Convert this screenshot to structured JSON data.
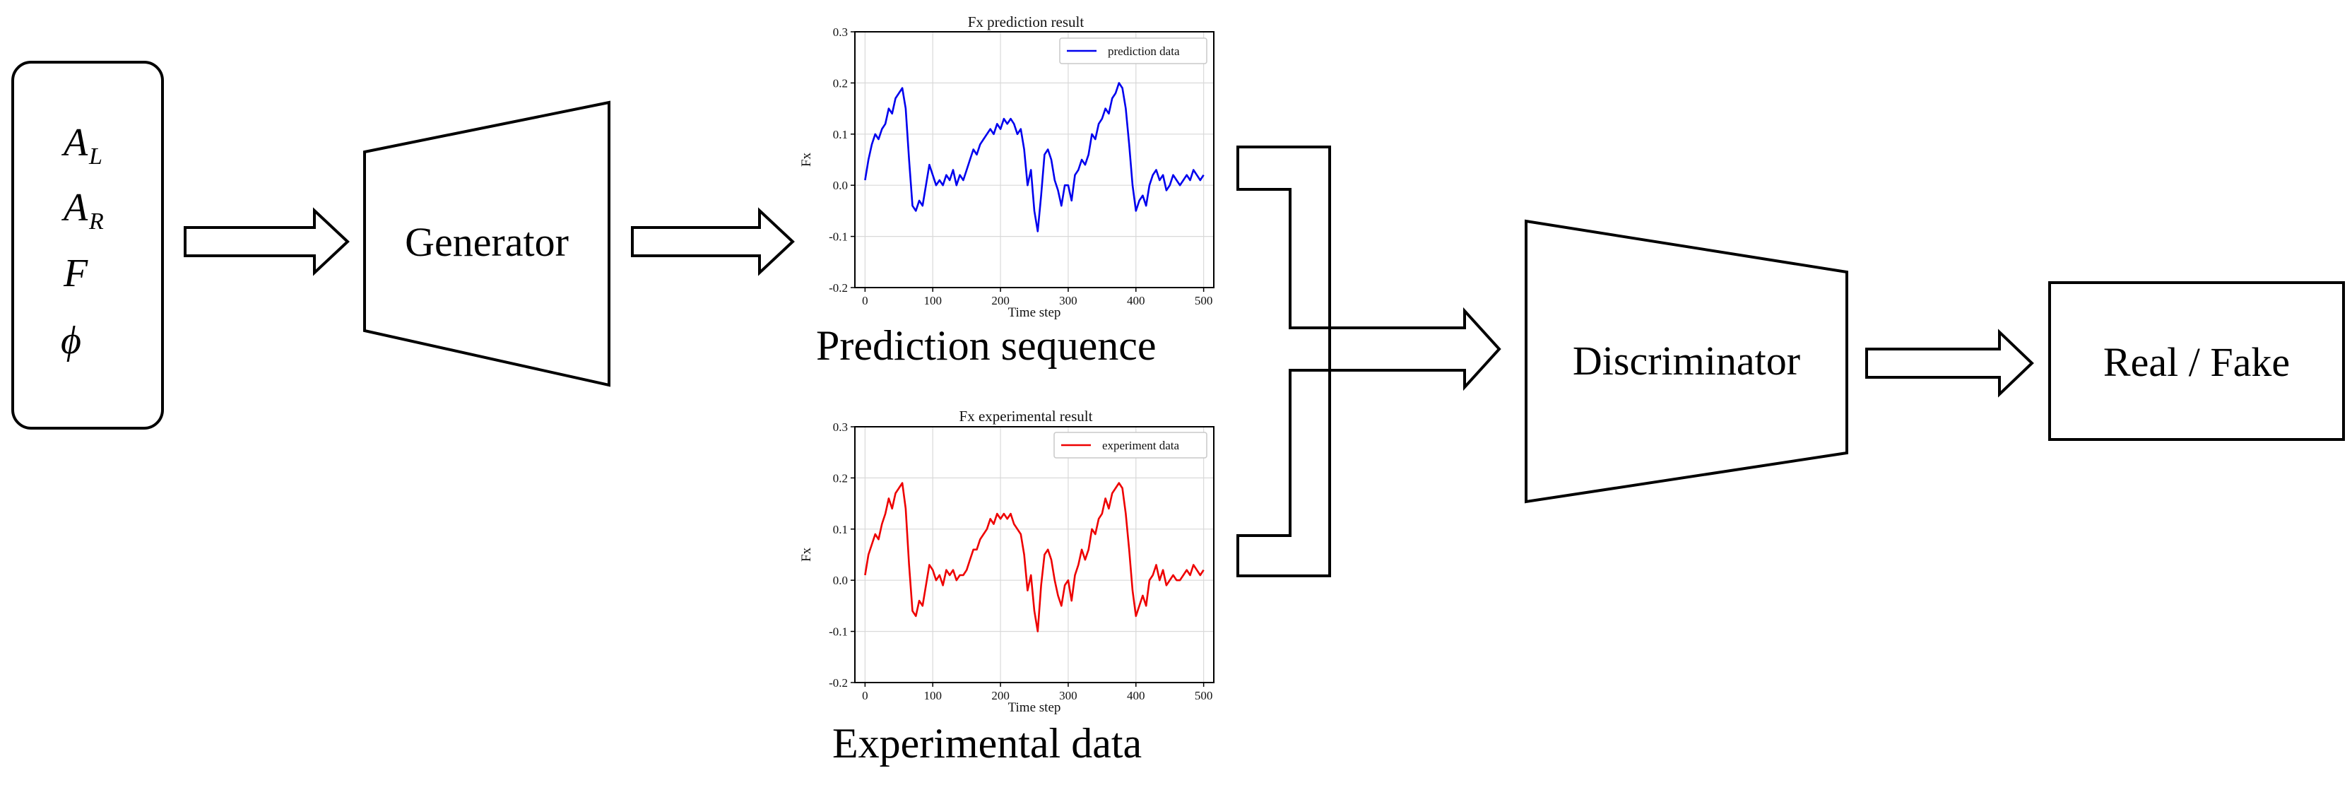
{
  "inputs": {
    "vars": [
      {
        "base": "A",
        "sub": "L"
      },
      {
        "base": "A",
        "sub": "R"
      },
      {
        "base": "F",
        "sub": ""
      },
      {
        "base": "ϕ",
        "sub": ""
      }
    ]
  },
  "generator": {
    "label": "Generator"
  },
  "discriminator": {
    "label": "Discriminator"
  },
  "output": {
    "label": "Real / Fake"
  },
  "captions": {
    "prediction": "Prediction sequence",
    "experimental": "Experimental data"
  },
  "colors": {
    "prediction": "#0000ee",
    "experimental": "#ee0000"
  },
  "chart_data": [
    {
      "type": "line",
      "title": "Fx prediction result",
      "xlabel": "Time step",
      "ylabel": "Fx",
      "xlim": [
        -15,
        515
      ],
      "ylim": [
        -0.2,
        0.3
      ],
      "xticks": [
        "0",
        "100",
        "200",
        "300",
        "400",
        "500"
      ],
      "yticks": [
        "-0.2",
        "-0.1",
        "0.0",
        "0.1",
        "0.2",
        "0.3"
      ],
      "legend": "top-right",
      "grid": true,
      "series": [
        {
          "name": "prediction data",
          "x": [
            0,
            5,
            10,
            15,
            20,
            25,
            30,
            35,
            40,
            45,
            50,
            55,
            60,
            65,
            70,
            75,
            80,
            85,
            90,
            95,
            100,
            105,
            110,
            115,
            120,
            125,
            130,
            135,
            140,
            145,
            150,
            155,
            160,
            165,
            170,
            175,
            180,
            185,
            190,
            195,
            200,
            205,
            210,
            215,
            220,
            225,
            230,
            235,
            240,
            245,
            250,
            255,
            260,
            265,
            270,
            275,
            280,
            285,
            290,
            295,
            300,
            305,
            310,
            315,
            320,
            325,
            330,
            335,
            340,
            345,
            350,
            355,
            360,
            365,
            370,
            375,
            380,
            385,
            390,
            395,
            400,
            405,
            410,
            415,
            420,
            425,
            430,
            435,
            440,
            445,
            450,
            455,
            460,
            465,
            470,
            475,
            480,
            485,
            490,
            495,
            500
          ],
          "values": [
            0.01,
            0.05,
            0.08,
            0.1,
            0.09,
            0.11,
            0.12,
            0.15,
            0.14,
            0.17,
            0.18,
            0.19,
            0.15,
            0.05,
            -0.04,
            -0.05,
            -0.03,
            -0.04,
            0.0,
            0.04,
            0.02,
            0.0,
            0.01,
            0.0,
            0.02,
            0.01,
            0.03,
            0.0,
            0.02,
            0.01,
            0.03,
            0.05,
            0.07,
            0.06,
            0.08,
            0.09,
            0.1,
            0.11,
            0.1,
            0.12,
            0.11,
            0.13,
            0.12,
            0.13,
            0.12,
            0.1,
            0.11,
            0.07,
            0.0,
            0.03,
            -0.05,
            -0.09,
            -0.02,
            0.06,
            0.07,
            0.05,
            0.01,
            -0.01,
            -0.04,
            0.0,
            0.0,
            -0.03,
            0.02,
            0.03,
            0.05,
            0.04,
            0.06,
            0.1,
            0.09,
            0.12,
            0.13,
            0.15,
            0.14,
            0.17,
            0.18,
            0.2,
            0.19,
            0.15,
            0.08,
            0.0,
            -0.05,
            -0.03,
            -0.02,
            -0.04,
            0.0,
            0.02,
            0.03,
            0.01,
            0.02,
            -0.01,
            0.0,
            0.02,
            0.01,
            0.0,
            0.01,
            0.02,
            0.01,
            0.03,
            0.02,
            0.01,
            0.02
          ]
        }
      ]
    },
    {
      "type": "line",
      "title": "Fx experimental result",
      "xlabel": "Time step",
      "ylabel": "Fx",
      "xlim": [
        -15,
        515
      ],
      "ylim": [
        -0.2,
        0.3
      ],
      "xticks": [
        "0",
        "100",
        "200",
        "300",
        "400",
        "500"
      ],
      "yticks": [
        "-0.2",
        "-0.1",
        "0.0",
        "0.1",
        "0.2",
        "0.3"
      ],
      "legend": "top-right",
      "grid": true,
      "series": [
        {
          "name": "experiment data",
          "x": [
            0,
            5,
            10,
            15,
            20,
            25,
            30,
            35,
            40,
            45,
            50,
            55,
            60,
            65,
            70,
            75,
            80,
            85,
            90,
            95,
            100,
            105,
            110,
            115,
            120,
            125,
            130,
            135,
            140,
            145,
            150,
            155,
            160,
            165,
            170,
            175,
            180,
            185,
            190,
            195,
            200,
            205,
            210,
            215,
            220,
            225,
            230,
            235,
            240,
            245,
            250,
            255,
            260,
            265,
            270,
            275,
            280,
            285,
            290,
            295,
            300,
            305,
            310,
            315,
            320,
            325,
            330,
            335,
            340,
            345,
            350,
            355,
            360,
            365,
            370,
            375,
            380,
            385,
            390,
            395,
            400,
            405,
            410,
            415,
            420,
            425,
            430,
            435,
            440,
            445,
            450,
            455,
            460,
            465,
            470,
            475,
            480,
            485,
            490,
            495,
            500
          ],
          "values": [
            0.01,
            0.05,
            0.07,
            0.09,
            0.08,
            0.11,
            0.13,
            0.16,
            0.14,
            0.17,
            0.18,
            0.19,
            0.14,
            0.03,
            -0.06,
            -0.07,
            -0.04,
            -0.05,
            -0.01,
            0.03,
            0.02,
            0.0,
            0.01,
            -0.01,
            0.02,
            0.01,
            0.02,
            0.0,
            0.01,
            0.01,
            0.02,
            0.04,
            0.06,
            0.06,
            0.08,
            0.09,
            0.1,
            0.12,
            0.11,
            0.13,
            0.12,
            0.13,
            0.12,
            0.13,
            0.11,
            0.1,
            0.09,
            0.05,
            -0.02,
            0.01,
            -0.06,
            -0.1,
            -0.01,
            0.05,
            0.06,
            0.04,
            0.0,
            -0.03,
            -0.05,
            -0.01,
            0.0,
            -0.04,
            0.01,
            0.03,
            0.06,
            0.04,
            0.06,
            0.1,
            0.09,
            0.12,
            0.13,
            0.16,
            0.14,
            0.17,
            0.18,
            0.19,
            0.18,
            0.13,
            0.06,
            -0.02,
            -0.07,
            -0.05,
            -0.03,
            -0.05,
            0.0,
            0.01,
            0.03,
            0.0,
            0.02,
            -0.01,
            0.0,
            0.01,
            0.0,
            0.0,
            0.01,
            0.02,
            0.01,
            0.03,
            0.02,
            0.01,
            0.02
          ]
        }
      ]
    }
  ]
}
